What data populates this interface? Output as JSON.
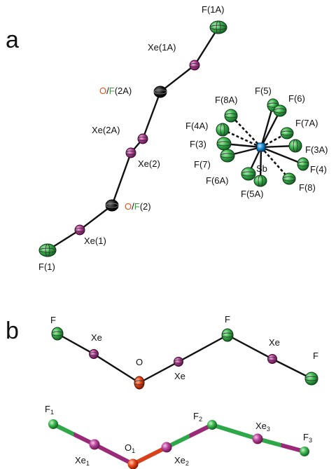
{
  "panels": {
    "a": "a",
    "b": "b"
  },
  "colors": {
    "xenon": "#b03b8c",
    "fluorine": "#3fb85a",
    "oxygen": "#e3421a",
    "antimony": "#1f8ed6",
    "label": "#111111",
    "oxygen_text": "#e8501a",
    "fluorine_text": "#3a9b3a"
  },
  "panel_a": {
    "labels": {
      "F1A": "F(1A)",
      "Xe1A": "Xe(1A)",
      "OF2A": {
        "o": "O",
        "slash": "/",
        "f": "F",
        "suffix": "(2A)"
      },
      "Xe2A": "Xe(2A)",
      "Xe2": "Xe(2)",
      "OF2": {
        "o": "O",
        "slash": "/",
        "f": "F",
        "suffix": "(2)"
      },
      "Xe1": "Xe(1)",
      "F1": "F(1)",
      "F5": "F(5)",
      "F6": "F(6)",
      "F8A": "F(8A)",
      "F7A": "F(7A)",
      "F4A": "F(4A)",
      "F3": "F(3)",
      "F3A": "F(3A)",
      "Sb": "Sb",
      "F7": "F(7)",
      "F4": "F(4)",
      "F6A": "F(6A)",
      "F5A": "F(5A)",
      "F8": "F(8)"
    }
  },
  "panel_b": {
    "top": {
      "F_left": "F",
      "Xe_left": "Xe",
      "O": "O",
      "Xe_mid": "Xe",
      "F_mid": "F",
      "Xe_right": "Xe",
      "F_right": "F"
    },
    "bottom": {
      "F1": {
        "base": "F",
        "sub": "1"
      },
      "Xe1": {
        "base": "Xe",
        "sub": "1"
      },
      "O1": {
        "base": "O",
        "sub": "1"
      },
      "Xe2": {
        "base": "Xe",
        "sub": "2"
      },
      "F2": {
        "base": "F",
        "sub": "2"
      },
      "Xe3": {
        "base": "Xe",
        "sub": "3"
      },
      "F3": {
        "base": "F",
        "sub": "3"
      }
    }
  }
}
